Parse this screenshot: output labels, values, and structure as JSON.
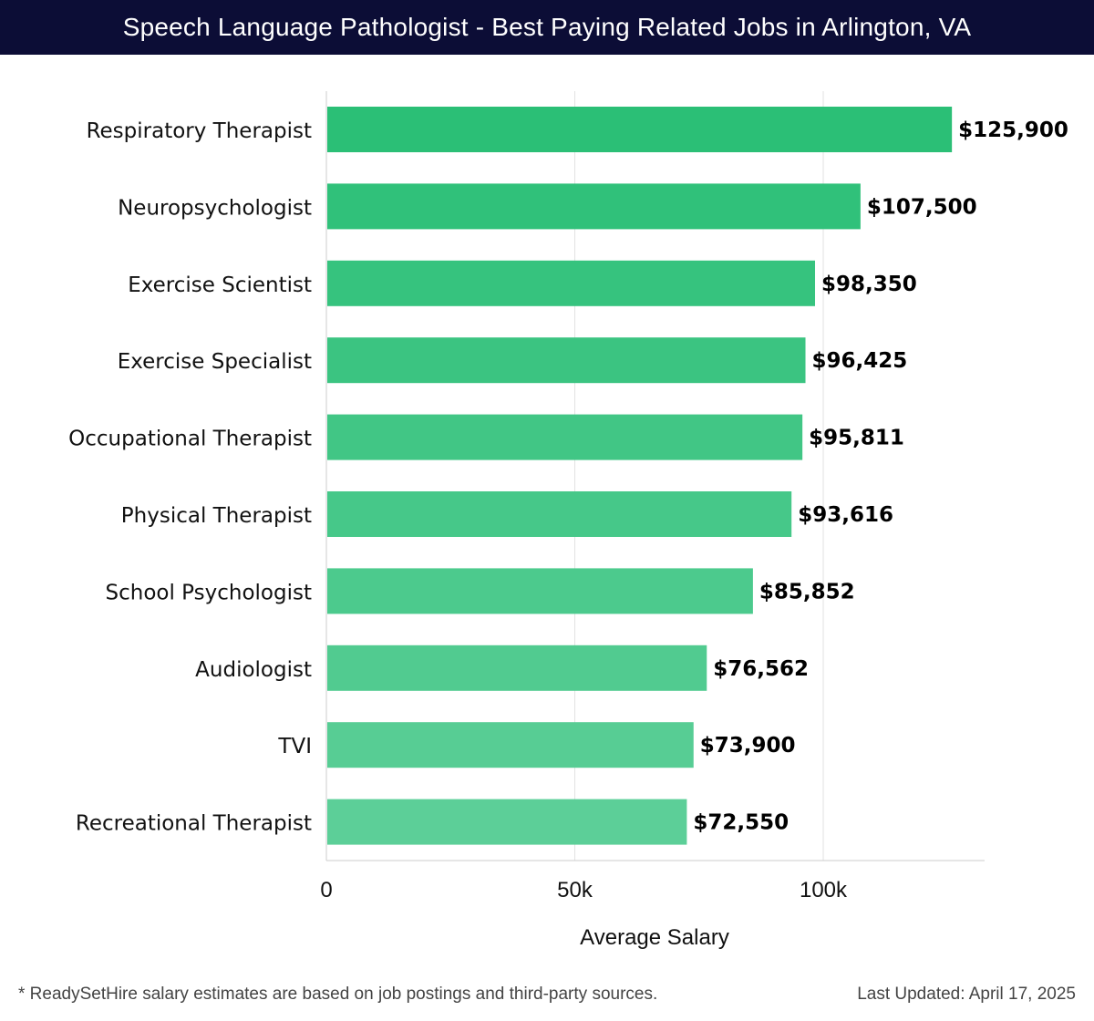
{
  "header": {
    "title": "Speech Language Pathologist - Best Paying Related Jobs in Arlington, VA"
  },
  "footer": {
    "note": "* ReadySetHire salary estimates are based on job postings and third-party sources.",
    "updated": "Last Updated: April 17, 2025"
  },
  "colors": {
    "header_bg": "#0c0d36",
    "bar_top": "#2bbf76",
    "bar_bottom": "#5ccf98",
    "grid": "#e2e2e2",
    "axis": "#cccccc"
  },
  "chart_data": {
    "type": "bar",
    "orientation": "horizontal",
    "title": "Speech Language Pathologist - Best Paying Related Jobs in Arlington, VA",
    "xlabel": "Average Salary",
    "ylabel": "",
    "xlim": [
      0,
      132000
    ],
    "xticks": [
      0,
      50000,
      100000
    ],
    "xtick_labels": [
      "0",
      "50k",
      "100k"
    ],
    "grid": true,
    "categories": [
      "Respiratory Therapist",
      "Neuropsychologist",
      "Exercise Scientist",
      "Exercise Specialist",
      "Occupational Therapist",
      "Physical Therapist",
      "School Psychologist",
      "Audiologist",
      "TVI",
      "Recreational Therapist"
    ],
    "values": [
      125900,
      107500,
      98350,
      96425,
      95811,
      93616,
      85852,
      76562,
      73900,
      72550
    ],
    "value_labels": [
      "$125,900",
      "$107,500",
      "$98,350",
      "$96,425",
      "$95,811",
      "$93,616",
      "$85,852",
      "$76,562",
      "$73,900",
      "$72,550"
    ]
  }
}
